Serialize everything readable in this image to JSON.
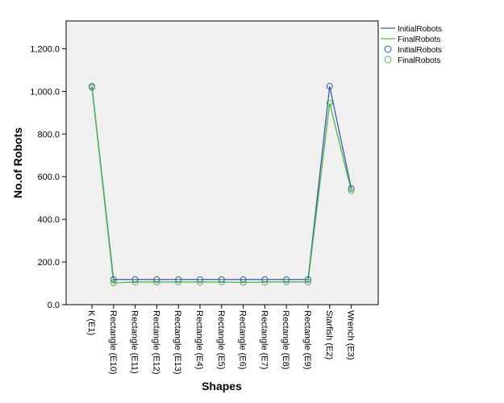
{
  "chart_data": {
    "type": "line",
    "title": "",
    "xlabel": "Shapes",
    "ylabel": "No.of Robots",
    "categories": [
      "K (E1)",
      "Rectangle (E10)",
      "Rectangle (E11)",
      "Rectangle (E12)",
      "Rectangle (E13)",
      "Rectangle (E4)",
      "Rectangle (E5)",
      "Rectangle (E6)",
      "Rectangle (E7)",
      "Rectangle (E8)",
      "Rectangle (E9)",
      "Starfish (E2)",
      "Wrench (E3)"
    ],
    "yticks": [
      "0.0",
      "200.0",
      "400.0",
      "600.0",
      "800.0",
      "1,000.0",
      "1,200.0"
    ],
    "ylim": [
      0,
      1330
    ],
    "grid": false,
    "legend_position": "top-right outside",
    "series": [
      {
        "name": "InitialRobots",
        "color": "#3e58ac",
        "marker": "circle",
        "values": [
          1024,
          118,
          118,
          118,
          118,
          118,
          118,
          118,
          118,
          118,
          118,
          1024,
          545
        ]
      },
      {
        "name": "FinalRobots",
        "color": "#4db74a",
        "marker": "circle",
        "values": [
          1018,
          102,
          106,
          106,
          106,
          106,
          106,
          104,
          106,
          107,
          106,
          945,
          534
        ]
      }
    ],
    "legend": [
      {
        "label": "InitialRobots",
        "kind": "line",
        "series": 0
      },
      {
        "label": "FinalRobots",
        "kind": "line",
        "series": 1
      },
      {
        "label": "InitialRobots",
        "kind": "marker",
        "series": 0
      },
      {
        "label": "FinalRobots",
        "kind": "marker",
        "series": 1
      }
    ],
    "plot_background": "#f0f0f0"
  }
}
